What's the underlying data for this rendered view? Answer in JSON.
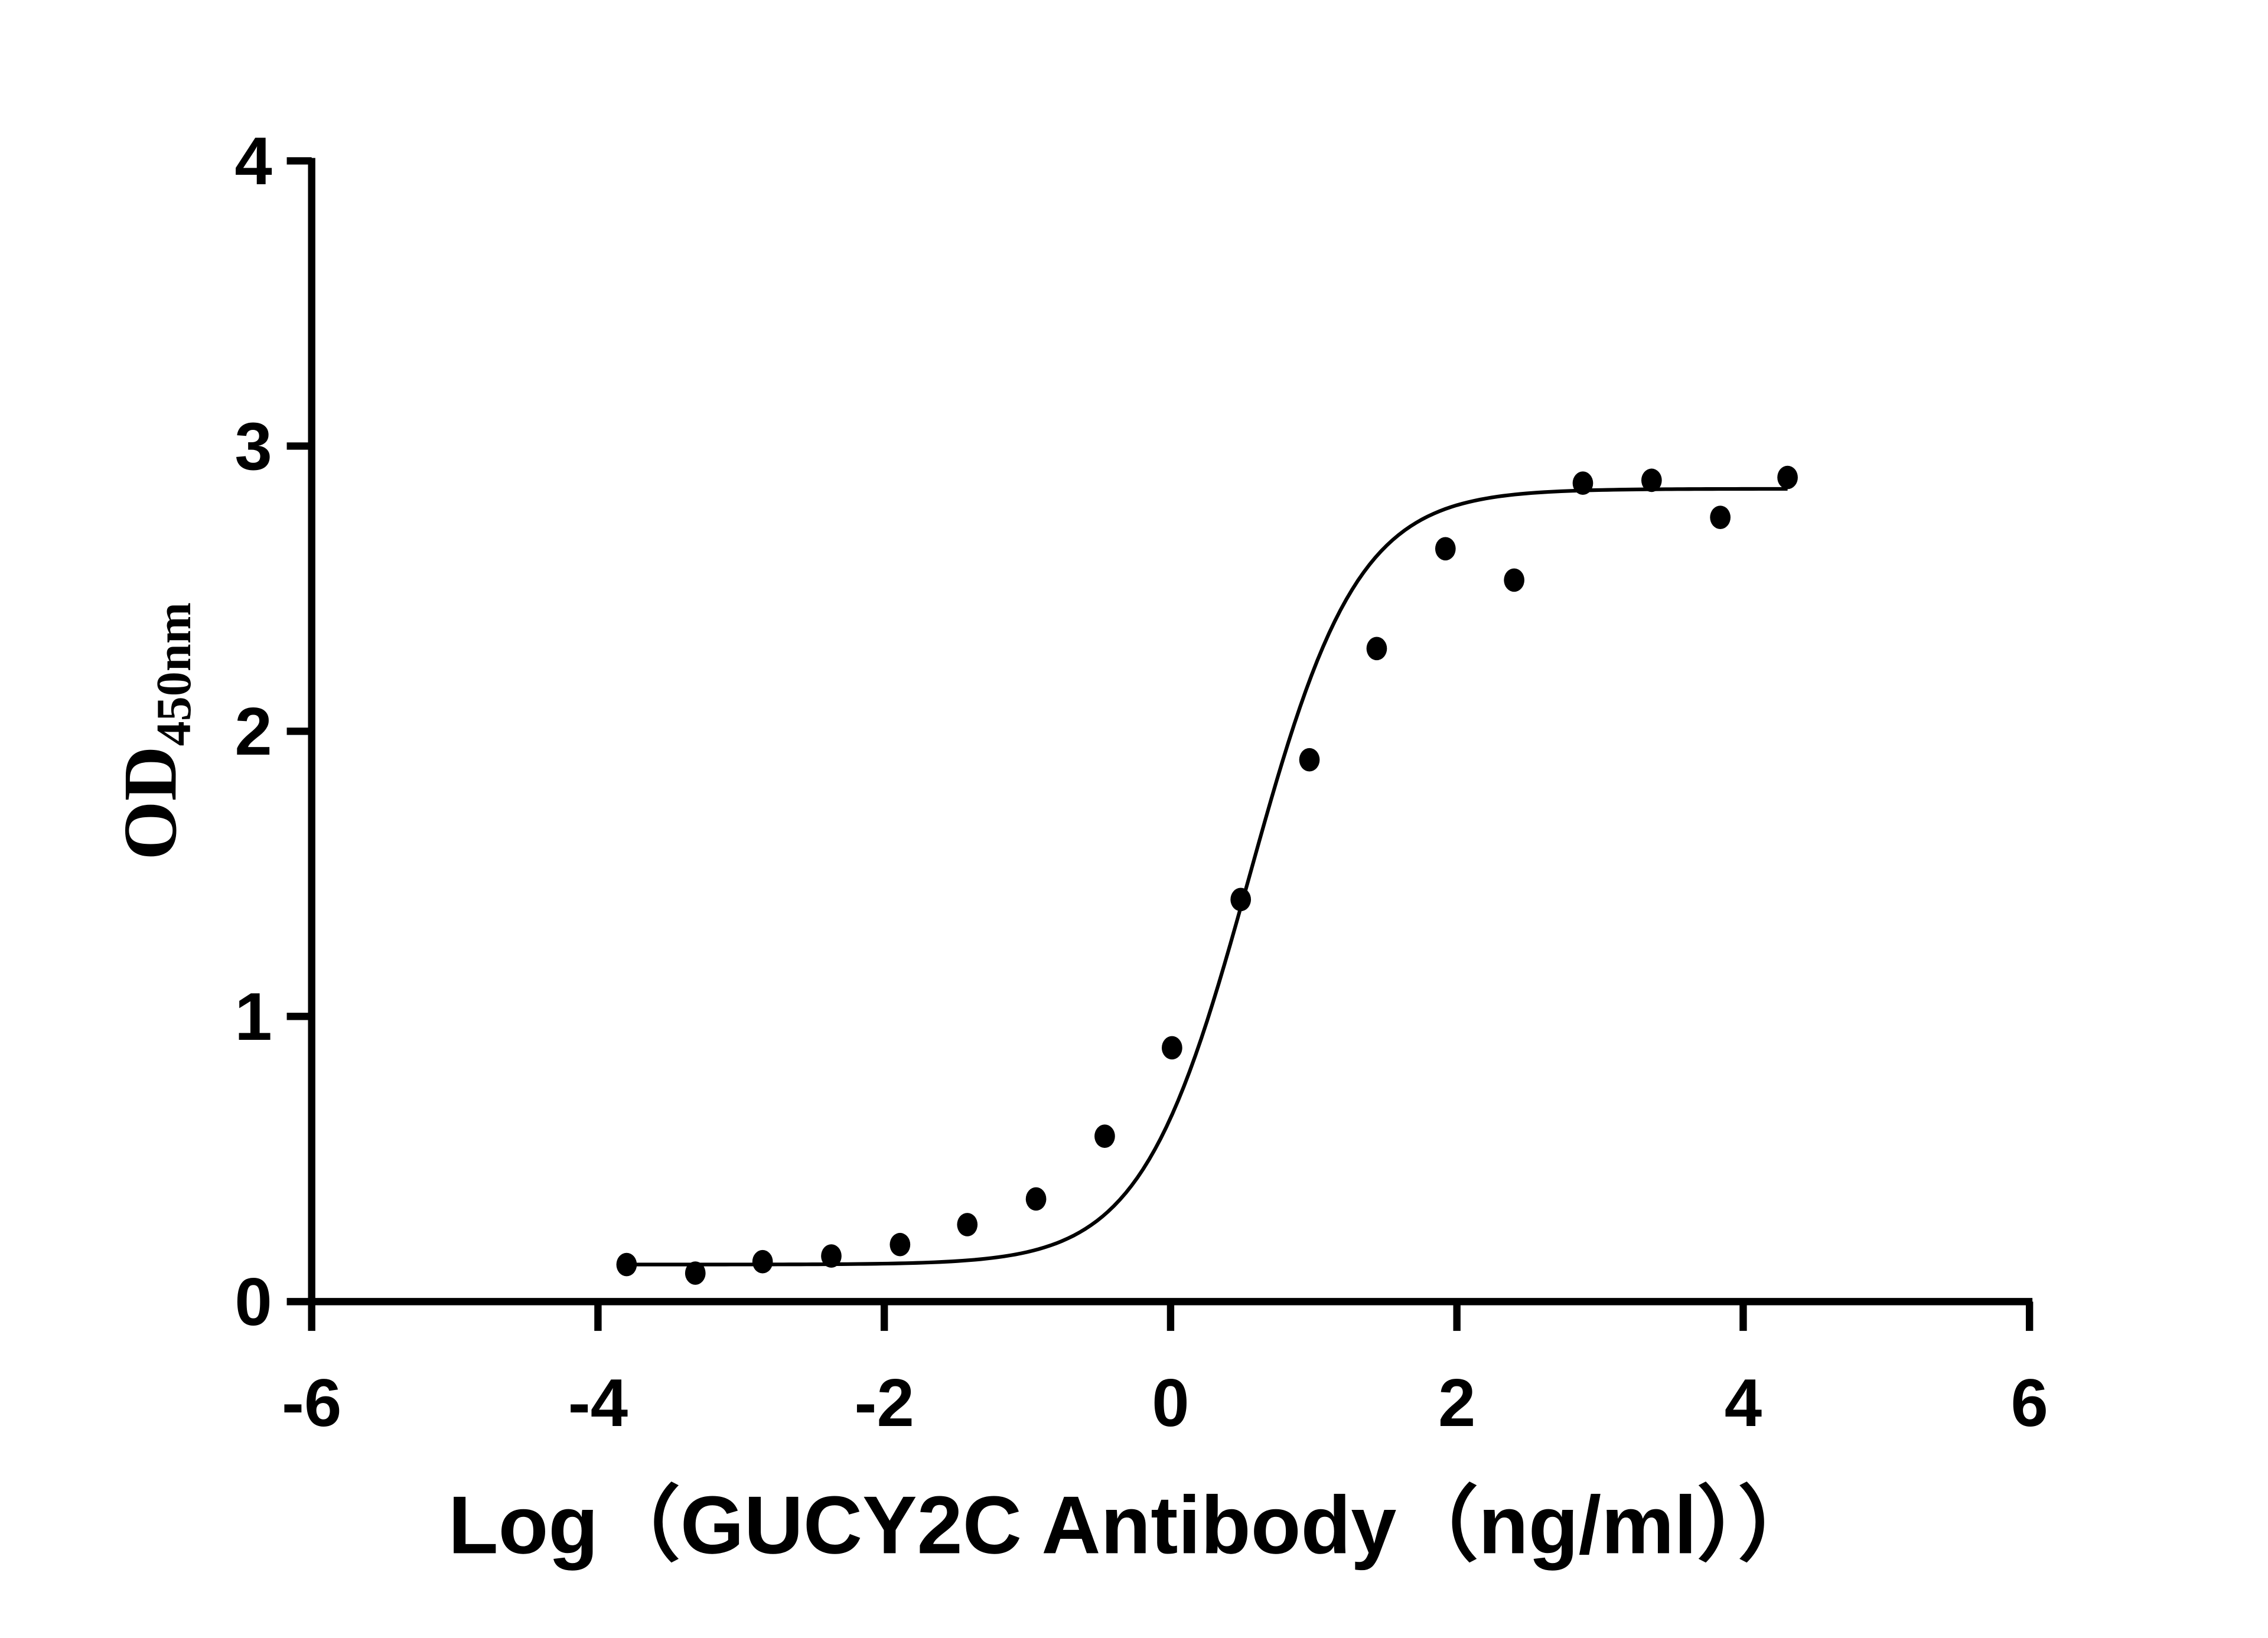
{
  "chart_data": {
    "type": "scatter",
    "title": "",
    "xlabel": "Log（GUCY2C Antibody（ng/ml））",
    "ylabel": "OD450nm",
    "ylabel_main": "OD",
    "ylabel_sub": "450nm",
    "xlim": [
      -6,
      6
    ],
    "ylim": [
      0,
      4
    ],
    "x_ticks": [
      -6,
      -4,
      -2,
      0,
      2,
      4,
      6
    ],
    "x_tick_labels": [
      "-6",
      "-4",
      "-2",
      "0",
      "2",
      "4",
      "6"
    ],
    "y_ticks": [
      0,
      1,
      2,
      3,
      4
    ],
    "y_tick_labels": [
      "0",
      "1",
      "2",
      "3",
      "4"
    ],
    "grid": false,
    "legend": null,
    "series": [
      {
        "name": "GUCY2C Antibody",
        "marker": "circle",
        "color": "#000000",
        "x": [
          -3.8,
          -3.32,
          -2.85,
          -2.37,
          -1.89,
          -1.42,
          -0.94,
          -0.46,
          0.01,
          0.49,
          0.97,
          1.44,
          1.92,
          2.4,
          2.88,
          3.36,
          3.84,
          4.31
        ],
        "y": [
          0.13,
          0.1,
          0.14,
          0.16,
          0.2,
          0.27,
          0.36,
          0.58,
          0.89,
          1.41,
          1.9,
          2.29,
          2.64,
          2.53,
          2.87,
          2.88,
          2.75,
          2.89
        ]
      }
    ],
    "fit": {
      "type": "4PL sigmoid",
      "bottom": 0.13,
      "top": 2.85,
      "logEC50": 0.55,
      "hill_slope": 1.15,
      "x_range": [
        -3.8,
        4.31
      ]
    }
  }
}
